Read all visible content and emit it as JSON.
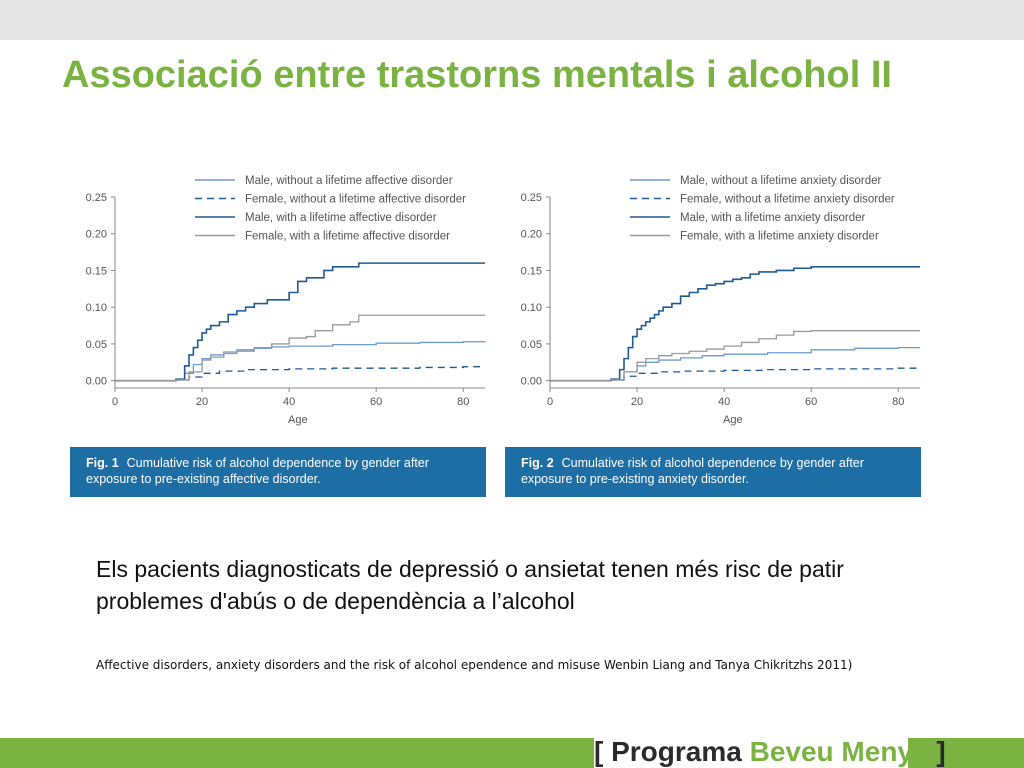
{
  "slide": {
    "title": "Associació entre trastorns mentals i alcohol II",
    "body": "Els pacients diagnosticats  de depressió o ansietat tenen més risc de patir problemes d'abús o de dependència a l’alcohol",
    "citation": "Affective disorders, anxiety disorders and the risk of alcohol  ependence and misuse Wenbin Liang and Tanya Chikritzhs 2011)",
    "brand": {
      "open": "[ ",
      "word1": "Programa ",
      "word2": "Beveu Menys",
      "close": " ]",
      "accent_color": "#7ab342"
    },
    "colors": {
      "title": "#7ab342",
      "caption_bg": "#1c6ea4",
      "male_without": "#6b9ccf",
      "female_without": "#1e5b94",
      "male_with": "#1e5b94",
      "female_with": "#9a9a9a"
    }
  },
  "chart_data": [
    {
      "type": "line",
      "caption_fig": "Fig. 1",
      "caption_text": "Cumulative risk of alcohol dependence by gender after exposure to pre-existing affective disorder.",
      "xlabel": "Age",
      "ylabel": "",
      "xlim": [
        0,
        85
      ],
      "ylim": [
        -0.01,
        0.25
      ],
      "xticks": [
        0,
        20,
        40,
        60,
        80
      ],
      "yticks": [
        "0.00",
        "0.05",
        "0.10",
        "0.15",
        "0.20",
        "0.25"
      ],
      "legend_position": "top",
      "series": [
        {
          "name": "Male, without a lifetime affective disorder",
          "style": "solid-light",
          "x": [
            0,
            14,
            16,
            18,
            20,
            22,
            25,
            28,
            32,
            36,
            40,
            50,
            60,
            70,
            80,
            85
          ],
          "y": [
            0,
            0.001,
            0.01,
            0.022,
            0.03,
            0.035,
            0.039,
            0.042,
            0.044,
            0.046,
            0.047,
            0.049,
            0.051,
            0.052,
            0.053,
            0.054
          ]
        },
        {
          "name": "Female, without a lifetime affective disorder",
          "style": "dashed",
          "x": [
            0,
            14,
            17,
            20,
            24,
            30,
            40,
            50,
            60,
            70,
            80,
            85
          ],
          "y": [
            0,
            0.001,
            0.005,
            0.01,
            0.013,
            0.015,
            0.016,
            0.017,
            0.017,
            0.018,
            0.019,
            0.019
          ]
        },
        {
          "name": "Male, with a lifetime affective disorder",
          "style": "solid-dark",
          "x": [
            0,
            14,
            16,
            17,
            18,
            19,
            20,
            21,
            22,
            24,
            26,
            28,
            30,
            32,
            35,
            38,
            40,
            42,
            44,
            48,
            50,
            52,
            56,
            60,
            70,
            80,
            85
          ],
          "y": [
            0,
            0.002,
            0.02,
            0.035,
            0.045,
            0.055,
            0.065,
            0.07,
            0.075,
            0.08,
            0.09,
            0.095,
            0.1,
            0.105,
            0.11,
            0.11,
            0.12,
            0.135,
            0.14,
            0.15,
            0.155,
            0.155,
            0.16,
            0.16,
            0.16,
            0.16,
            0.16
          ]
        },
        {
          "name": "Female, with a lifetime affective disorder",
          "style": "solid-gray",
          "x": [
            0,
            14,
            17,
            20,
            22,
            25,
            28,
            32,
            36,
            40,
            44,
            46,
            50,
            54,
            56,
            60,
            70,
            80,
            85
          ],
          "y": [
            0,
            0.001,
            0.012,
            0.028,
            0.032,
            0.037,
            0.04,
            0.045,
            0.05,
            0.058,
            0.06,
            0.068,
            0.076,
            0.08,
            0.089,
            0.089,
            0.089,
            0.089,
            0.089
          ]
        }
      ]
    },
    {
      "type": "line",
      "caption_fig": "Fig. 2",
      "caption_text": "Cumulative risk of alcohol dependence by gender after exposure to pre-existing anxiety disorder.",
      "xlabel": "Age",
      "ylabel": "",
      "xlim": [
        0,
        85
      ],
      "ylim": [
        -0.01,
        0.25
      ],
      "xticks": [
        0,
        20,
        40,
        60,
        80
      ],
      "yticks": [
        "0.00",
        "0.05",
        "0.10",
        "0.15",
        "0.20",
        "0.25"
      ],
      "legend_position": "top",
      "series": [
        {
          "name": "Male, without a lifetime anxiety disorder",
          "style": "solid-light",
          "x": [
            0,
            14,
            17,
            20,
            22,
            25,
            30,
            35,
            40,
            50,
            60,
            70,
            80,
            85
          ],
          "y": [
            0,
            0.001,
            0.012,
            0.02,
            0.025,
            0.028,
            0.031,
            0.034,
            0.036,
            0.038,
            0.042,
            0.044,
            0.045,
            0.045
          ]
        },
        {
          "name": "Female, without a lifetime anxiety disorder",
          "style": "dashed",
          "x": [
            0,
            14,
            17,
            20,
            25,
            30,
            40,
            50,
            60,
            70,
            80,
            85
          ],
          "y": [
            0,
            0.001,
            0.006,
            0.01,
            0.012,
            0.013,
            0.014,
            0.015,
            0.016,
            0.016,
            0.017,
            0.017
          ]
        },
        {
          "name": "Male, with a lifetime anxiety disorder",
          "style": "solid-dark",
          "x": [
            0,
            14,
            16,
            17,
            18,
            19,
            20,
            21,
            22,
            23,
            24,
            25,
            26,
            28,
            30,
            32,
            34,
            36,
            38,
            40,
            42,
            44,
            46,
            48,
            52,
            56,
            60,
            70,
            80,
            85
          ],
          "y": [
            0,
            0.002,
            0.015,
            0.03,
            0.045,
            0.06,
            0.07,
            0.075,
            0.08,
            0.085,
            0.09,
            0.095,
            0.1,
            0.105,
            0.115,
            0.12,
            0.125,
            0.13,
            0.132,
            0.135,
            0.138,
            0.14,
            0.145,
            0.148,
            0.15,
            0.153,
            0.155,
            0.155,
            0.155,
            0.155
          ]
        },
        {
          "name": "Female, with a lifetime anxiety disorder",
          "style": "solid-gray",
          "x": [
            0,
            14,
            17,
            20,
            22,
            25,
            28,
            32,
            36,
            40,
            44,
            48,
            52,
            56,
            60,
            70,
            80,
            85
          ],
          "y": [
            0,
            0.001,
            0.012,
            0.025,
            0.03,
            0.034,
            0.037,
            0.04,
            0.043,
            0.047,
            0.052,
            0.057,
            0.062,
            0.067,
            0.068,
            0.068,
            0.068,
            0.068
          ]
        }
      ]
    }
  ]
}
